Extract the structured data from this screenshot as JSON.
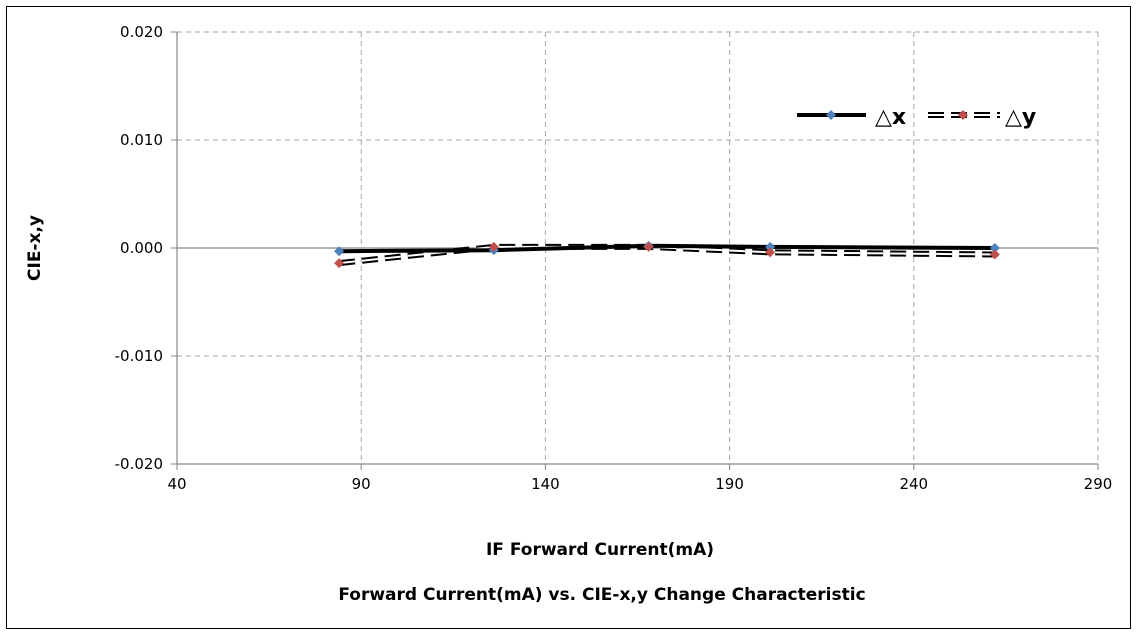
{
  "chart_data": {
    "type": "line",
    "title": "Forward Current(mA) vs. CIE-x,y Change Characteristic",
    "xlabel": "IF Forward Current(mA)",
    "ylabel": "CIE-x,y",
    "xlim": [
      40,
      290
    ],
    "ylim": [
      -0.02,
      0.02
    ],
    "x_ticks": [
      "40",
      "90",
      "140",
      "190",
      "240",
      "290"
    ],
    "y_ticks": [
      "0.020",
      "0.010",
      "0.000",
      "-0.010",
      "-0.020"
    ],
    "grid": true,
    "legend_position": "top-right",
    "series": [
      {
        "name": "△x",
        "x": [
          84,
          126,
          168,
          201,
          262
        ],
        "y": [
          -0.0003,
          -0.0002,
          0.0002,
          0.0001,
          0.0
        ],
        "line_color": "#000000",
        "marker_color": "#4F81BD",
        "line_style": "solid"
      },
      {
        "name": "△y",
        "x": [
          84,
          126,
          168,
          201,
          262
        ],
        "y": [
          -0.0014,
          0.0001,
          0.0001,
          -0.0004,
          -0.0006
        ],
        "line_color": "#000000",
        "marker_color": "#C0504D",
        "line_style": "dashed"
      }
    ]
  }
}
